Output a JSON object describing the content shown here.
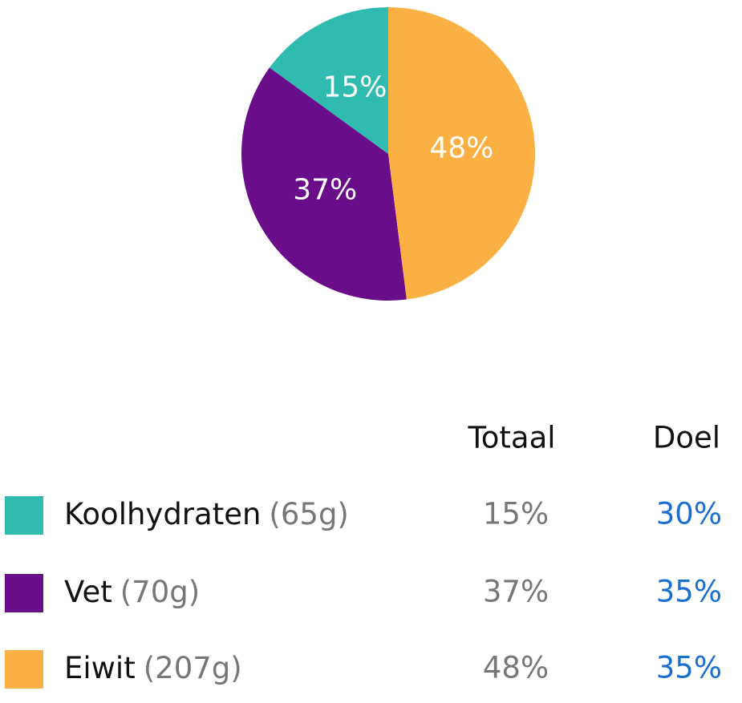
{
  "chart_data": {
    "type": "pie",
    "categories": [
      "Koolhydraten",
      "Vet",
      "Eiwit"
    ],
    "values": [
      15,
      37,
      48
    ],
    "value_labels": [
      "15%",
      "37%",
      "48%"
    ],
    "colors": [
      "#2fbbb0",
      "#6a0d8a",
      "#fbb044"
    ]
  },
  "table": {
    "headers": [
      "Totaal",
      "Doel"
    ],
    "rows": [
      {
        "amount": "(65g)",
        "goal": "30%"
      },
      {
        "amount": "(70g)",
        "goal": "35%"
      },
      {
        "amount": "(207g)",
        "goal": "35%"
      }
    ]
  }
}
